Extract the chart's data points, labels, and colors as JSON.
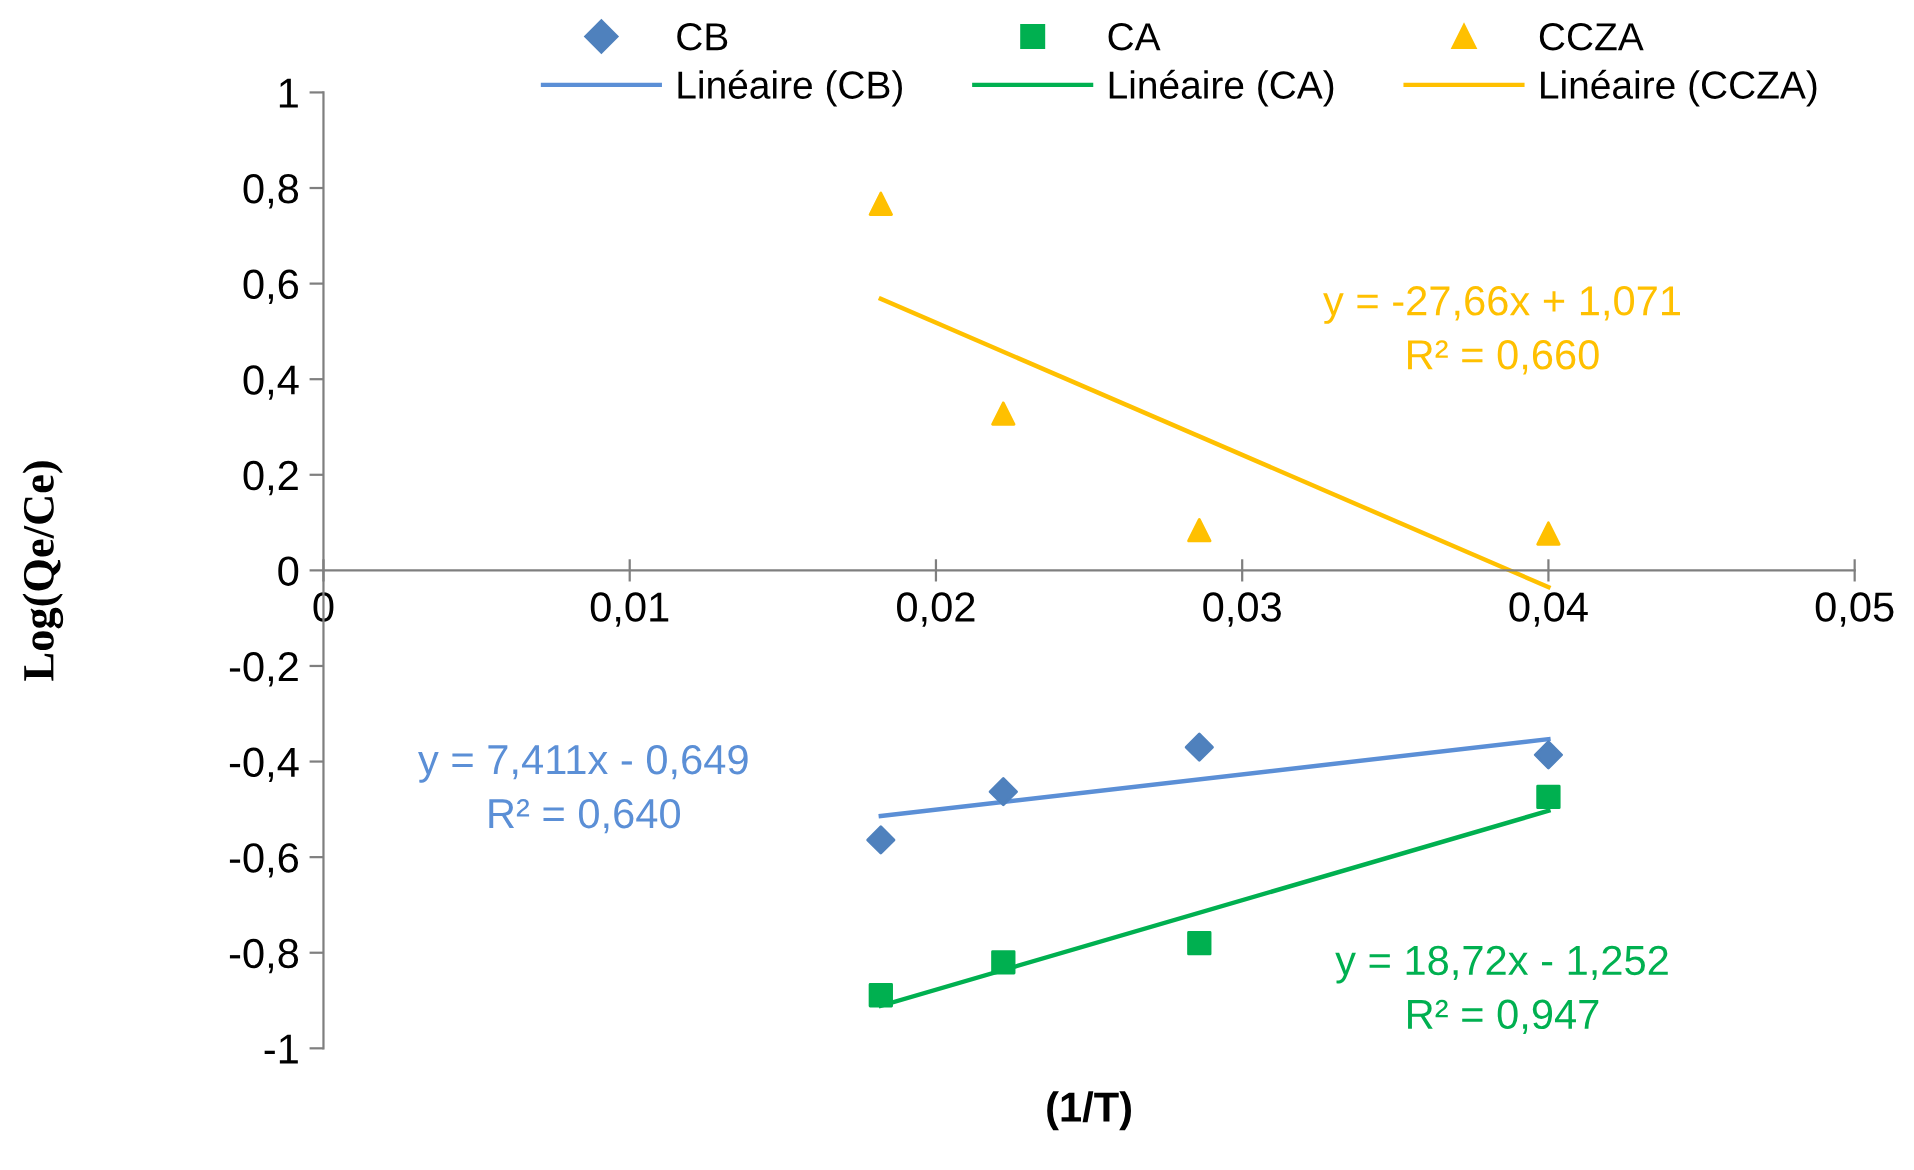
{
  "chart_data": {
    "type": "scatter",
    "xlabel": "(1/T)",
    "ylabel": "Log(Qe/Ce)",
    "xlim": [
      0,
      0.05
    ],
    "ylim": [
      -1,
      1
    ],
    "xticks": [
      0,
      {
        "value": 0.01,
        "label": "0,01"
      },
      {
        "value": 0.02,
        "label": "0,02"
      },
      {
        "value": 0.03,
        "label": "0,03"
      },
      {
        "value": 0.04,
        "label": "0,04"
      },
      {
        "value": 0.05,
        "label": "0,05"
      }
    ],
    "yticks": [
      {
        "value": -1,
        "label": "-1"
      },
      {
        "value": -0.8,
        "label": "-0,8"
      },
      {
        "value": -0.6,
        "label": "-0,6"
      },
      {
        "value": -0.4,
        "label": "-0,4"
      },
      {
        "value": -0.2,
        "label": "-0,2"
      },
      0,
      {
        "value": 0.2,
        "label": "0,2"
      },
      {
        "value": 0.4,
        "label": "0,4"
      },
      {
        "value": 0.6,
        "label": "0,6"
      },
      {
        "value": 0.8,
        "label": "0,8"
      },
      1
    ],
    "grid": false,
    "legend": "top",
    "series": [
      {
        "name": "CB",
        "marker": "diamond",
        "color": "#4f81bd",
        "x": [
          0.0182,
          0.0222,
          0.0286,
          0.04
        ],
        "values": [
          -0.564,
          -0.463,
          -0.37,
          -0.386
        ]
      },
      {
        "name": "Linéaire (CB)",
        "type": "line",
        "marker": "none",
        "color": "#5b8fd6",
        "x": [
          0.0182,
          0.04
        ],
        "values": [
          -0.514,
          -0.353
        ]
      },
      {
        "name": "CA",
        "marker": "square",
        "color": "#00b050",
        "x": [
          0.0182,
          0.0222,
          0.0286,
          0.04
        ],
        "values": [
          -0.889,
          -0.82,
          -0.78,
          -0.474
        ]
      },
      {
        "name": "Linéaire (CA)",
        "type": "line",
        "marker": "none",
        "color": "#00b050",
        "x": [
          0.0182,
          0.04
        ],
        "values": [
          -0.911,
          -0.503
        ]
      },
      {
        "name": "CCZA",
        "marker": "triangle",
        "color": "#ffc000",
        "x": [
          0.0182,
          0.0222,
          0.0286,
          0.04
        ],
        "values": [
          0.767,
          0.328,
          0.084,
          0.077
        ]
      },
      {
        "name": "Linéaire (CCZA)",
        "type": "line",
        "marker": "none",
        "color": "#ffc000",
        "x": [
          0.0182,
          0.04
        ],
        "values": [
          0.568,
          -0.035
        ]
      }
    ],
    "annotations": [
      "y = 7,411x - 0,649\nR² = 0,640",
      "y = 18,72x - 1,252\nR² = 0,947",
      "y = -27,66x + 1,071\nR² = 0,660"
    ]
  }
}
